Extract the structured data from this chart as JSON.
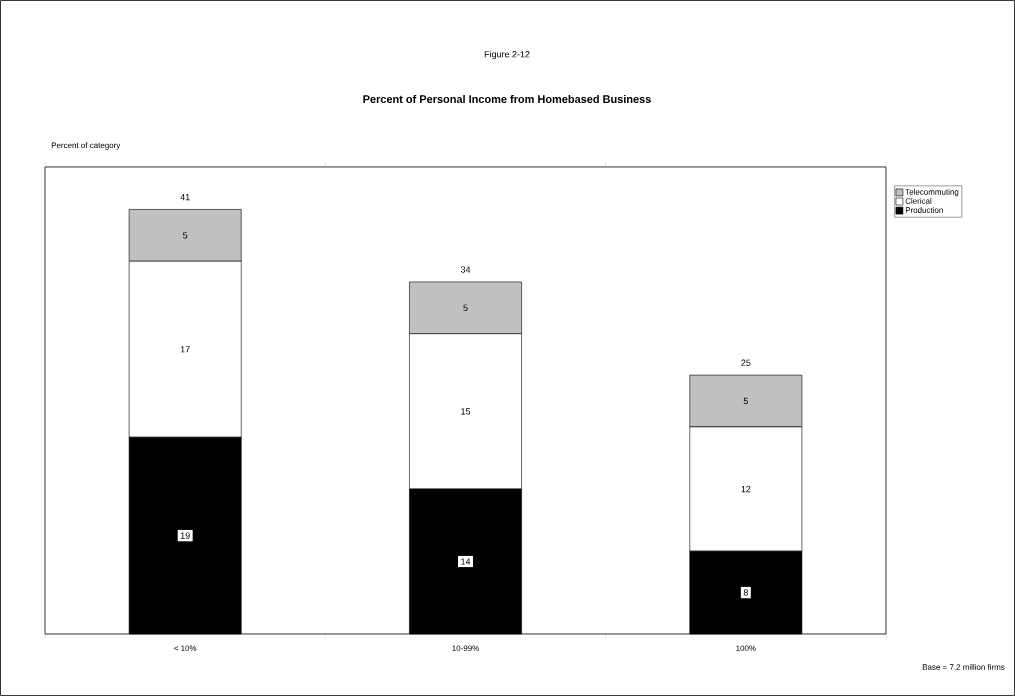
{
  "chart_data": {
    "type": "bar",
    "stacked": true,
    "title": "Percent of Personal Income from Homebased Business",
    "annotations": [
      "Figure 2-12",
      "Base =  7.2 million firms",
      "Percent of category"
    ],
    "categories": [
      "< 10%",
      "10-99%",
      "100%"
    ],
    "series": [
      {
        "name": "Production",
        "color": "#000000",
        "values": [
          19,
          14,
          8
        ]
      },
      {
        "name": "Clerical",
        "color": "#ffffff",
        "values": [
          17,
          15,
          12
        ]
      },
      {
        "name": "Telecommuting",
        "color": "#c0c0c0",
        "values": [
          5,
          5,
          5
        ]
      }
    ],
    "totals": [
      "41",
      "34",
      "25"
    ],
    "data_labels": true,
    "tick_labels": "x",
    "legend": "top right"
  }
}
